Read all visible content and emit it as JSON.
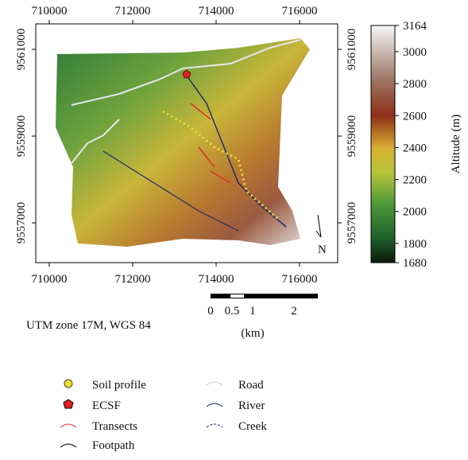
{
  "map": {
    "xlim": [
      709676,
      716914
    ],
    "ylim": [
      9556083,
      9561587
    ],
    "xticks": [
      710000,
      712000,
      714000,
      716000
    ],
    "yticks": [
      9557000,
      9559000,
      9561000
    ],
    "north": "N",
    "projection": "UTM zone 17M, WGS 84"
  },
  "colorbar": {
    "title": "Altitude (m)",
    "lim": [
      1680,
      3164
    ],
    "ticks": [
      1680,
      1800,
      2000,
      2200,
      2400,
      2600,
      2800,
      3000,
      3164
    ]
  },
  "scale_bar": {
    "labels": [
      "0",
      "0.5",
      "1",
      "2"
    ],
    "unit": "(km)"
  },
  "legend": {
    "items": [
      "Soil profile",
      "ECSF",
      "Transects",
      "Footpath",
      "Road",
      "River",
      "Creek"
    ]
  }
}
